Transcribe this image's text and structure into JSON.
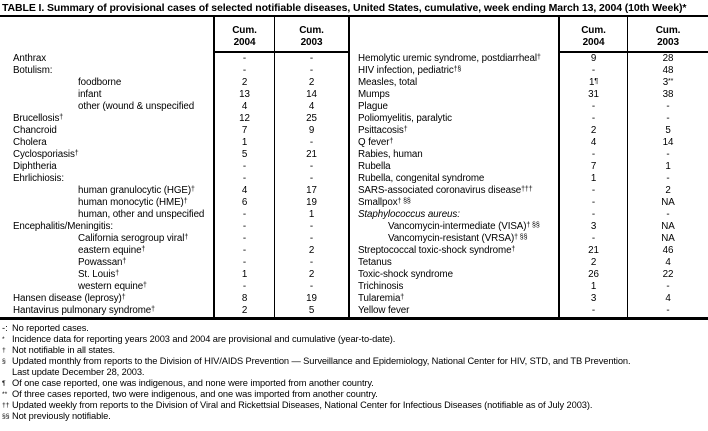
{
  "title": "TABLE I. Summary of provisional cases of selected notifiable diseases, United States, cumulative, week ending March 13, 2004 (10th Week)*",
  "colors": {
    "text": "#000000",
    "rules": "#000000",
    "background": "#ffffff"
  },
  "header": {
    "cum": "Cum.",
    "y2004": "2004",
    "y2003": "2003"
  },
  "table": {
    "left_rows": [
      {
        "label": "Anthrax",
        "c2004": "-",
        "c2003": "-"
      },
      {
        "label": "Botulism:",
        "c2004": "-",
        "c2003": "-"
      },
      {
        "label": "foodborne",
        "indent": true,
        "c2004": "2",
        "c2003": "2"
      },
      {
        "label": "infant",
        "indent": true,
        "c2004": "13",
        "c2003": "14"
      },
      {
        "label": "other (wound & unspecified",
        "indent": true,
        "c2004": "4",
        "c2003": "4"
      },
      {
        "label": "Brucellosis",
        "label_sup": "†",
        "c2004": "12",
        "c2003": "25"
      },
      {
        "label": "Chancroid",
        "c2004": "7",
        "c2003": "9"
      },
      {
        "label": "Cholera",
        "c2004": "1",
        "c2003": "-"
      },
      {
        "label": "Cyclosporiasis",
        "label_sup": "†",
        "c2004": "5",
        "c2003": "21"
      },
      {
        "label": "Diphtheria",
        "c2004": "-",
        "c2003": "-"
      },
      {
        "label": "Ehrlichiosis:",
        "c2004": "-",
        "c2003": "-"
      },
      {
        "label": "human granulocytic (HGE)",
        "label_sup": "†",
        "indent": true,
        "c2004": "4",
        "c2003": "17"
      },
      {
        "label": "human monocytic (HME)",
        "label_sup": "†",
        "indent": true,
        "c2004": "6",
        "c2003": "19"
      },
      {
        "label": "human, other and unspecified",
        "indent": true,
        "c2004": "-",
        "c2003": "1"
      },
      {
        "label": "Encephalitis/Meningitis:",
        "c2004": "-",
        "c2003": "-"
      },
      {
        "label": "California serogroup viral",
        "label_sup": "†",
        "indent": true,
        "c2004": "-",
        "c2003": "-"
      },
      {
        "label": "eastern equine",
        "label_sup": "†",
        "indent": true,
        "c2004": "-",
        "c2003": "2"
      },
      {
        "label": "Powassan",
        "label_sup": "†",
        "indent": true,
        "c2004": "-",
        "c2003": "-"
      },
      {
        "label": "St. Louis",
        "label_sup": "†",
        "indent": true,
        "c2004": "1",
        "c2003": "2"
      },
      {
        "label": "western equine",
        "label_sup": "†",
        "indent": true,
        "c2004": "-",
        "c2003": "-"
      },
      {
        "label": "Hansen disease (leprosy)",
        "label_sup": "†",
        "c2004": "8",
        "c2003": "19"
      },
      {
        "label": "Hantavirus pulmonary syndrome",
        "label_sup": "†",
        "c2004": "2",
        "c2003": "5"
      }
    ],
    "right_rows": [
      {
        "label": "Hemolytic uremic syndrome, postdiarrheal",
        "label_sup": "†",
        "c2004": "9",
        "c2003": "28"
      },
      {
        "label": "HIV infection, pediatric",
        "label_sup": "†§",
        "c2004": "-",
        "c2003": "48"
      },
      {
        "label": "Measles, total",
        "c2004": "1",
        "c2004_sup": "¶",
        "c2003": "3",
        "c2003_sup": "**"
      },
      {
        "label": "Mumps",
        "c2004": "31",
        "c2003": "38"
      },
      {
        "label": "Plague",
        "c2004": "-",
        "c2003": "-"
      },
      {
        "label": "Poliomyelitis, paralytic",
        "c2004": "-",
        "c2003": "-"
      },
      {
        "label": "Psittacosis",
        "label_sup": "†",
        "c2004": "2",
        "c2003": "5"
      },
      {
        "label": "Q fever",
        "label_sup": "†",
        "c2004": "4",
        "c2003": "14"
      },
      {
        "label": "Rabies, human",
        "c2004": "-",
        "c2003": "-"
      },
      {
        "label": "Rubella",
        "c2004": "7",
        "c2003": "1"
      },
      {
        "label": "Rubella, congenital syndrome",
        "c2004": "1",
        "c2003": "-"
      },
      {
        "label": "SARS-associated coronavirus disease",
        "label_sup": "†††",
        "c2004": "-",
        "c2003": "2"
      },
      {
        "label": "Smallpox",
        "label_sup": "† §§",
        "c2004": "-",
        "c2003": "NA"
      },
      {
        "label": "Staphylococcus aureus:",
        "italic": true,
        "c2004": "-",
        "c2003": "-"
      },
      {
        "label": "Vancomycin-intermediate (VISA)",
        "label_sup": "† §§",
        "indent": true,
        "c2004": "3",
        "c2003": "NA"
      },
      {
        "label": "Vancomycin-resistant (VRSA)",
        "label_sup": "† §§",
        "indent": true,
        "c2004": "-",
        "c2003": "NA"
      },
      {
        "label": "Streptococcal toxic-shock syndrome",
        "label_sup": "†",
        "c2004": "21",
        "c2003": "46"
      },
      {
        "label": "Tetanus",
        "c2004": "2",
        "c2003": "4"
      },
      {
        "label": "Toxic-shock syndrome",
        "c2004": "26",
        "c2003": "22"
      },
      {
        "label": "Trichinosis",
        "c2004": "1",
        "c2003": "-"
      },
      {
        "label": "Tularemia",
        "label_sup": "†",
        "c2004": "3",
        "c2003": "4"
      },
      {
        "label": "Yellow fever",
        "c2004": "-",
        "c2003": "-"
      }
    ]
  },
  "footnotes": [
    {
      "marker": "-:",
      "sup": false,
      "text": "No reported cases."
    },
    {
      "marker": "*",
      "sup": true,
      "text": "Incidence data for reporting years 2003 and 2004 are provisional and cumulative (year-to-date)."
    },
    {
      "marker": "†",
      "sup": true,
      "text": "Not notifiable in all states."
    },
    {
      "marker": "§",
      "sup": true,
      "text": "Updated monthly from reports to the Division of HIV/AIDS Prevention — Surveillance and Epidemiology, National Center for HIV, STD, and TB Prevention."
    },
    {
      "marker": "",
      "sup": false,
      "text": "Last update December 28, 2003."
    },
    {
      "marker": "¶",
      "sup": true,
      "text": "Of one case reported, one was indigenous, and none were imported from another country."
    },
    {
      "marker": "**",
      "sup": true,
      "text": "Of three cases reported, two were indigenous, and one was imported from another country."
    },
    {
      "marker": "††",
      "sup": true,
      "text": "Updated weekly from reports to the Division of Viral and Rickettsial Diseases, National Center for Infectious Diseases (notifiable as of July 2003)."
    },
    {
      "marker": "§§",
      "sup": true,
      "text": "Not previously notifiable."
    }
  ]
}
